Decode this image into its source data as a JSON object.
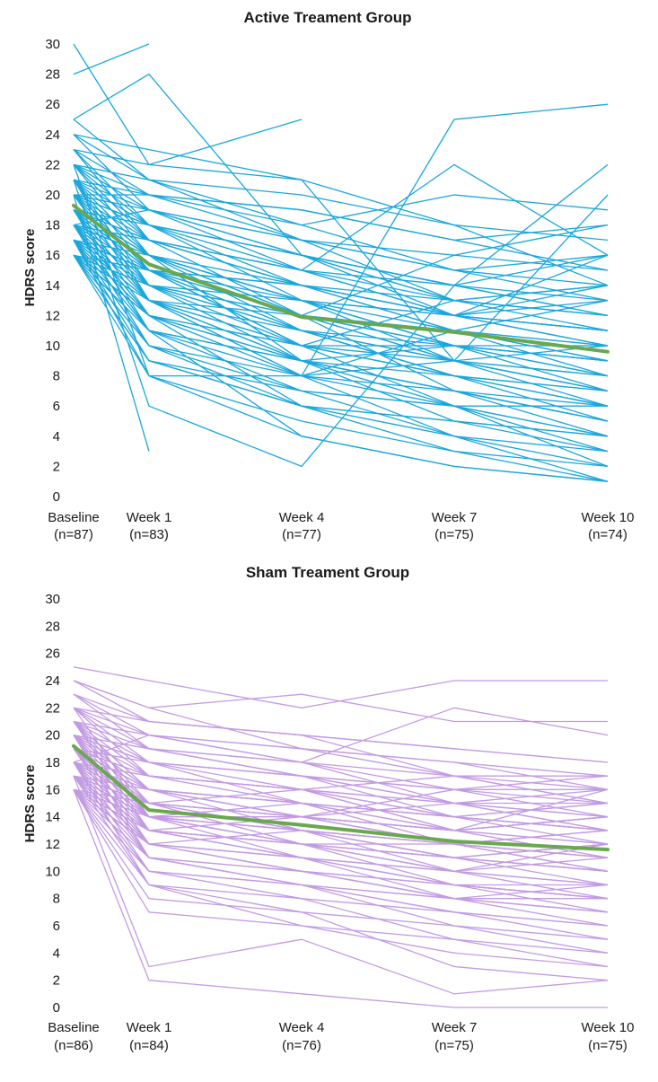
{
  "chart_data": [
    {
      "type": "line",
      "title": "Active Treament Group",
      "ylabel": "HDRS score",
      "ylim": [
        0,
        30
      ],
      "yticks": [
        0,
        2,
        4,
        6,
        8,
        10,
        12,
        14,
        16,
        18,
        20,
        22,
        24,
        26,
        28,
        30
      ],
      "categories": [
        "Baseline",
        "Week 1",
        "Week 4",
        "Week 7",
        "Week 10"
      ],
      "category_n": [
        "(n=87)",
        "(n=83)",
        "(n=77)",
        "(n=75)",
        "(n=74)"
      ],
      "individual_color": "#1aa7dc",
      "mean_color": "#6aa84f",
      "grid": false,
      "mean": [
        19.3,
        15.4,
        11.9,
        10.9,
        9.6
      ],
      "subjects": [
        [
          28,
          30
        ],
        [
          30,
          22,
          25
        ],
        [
          25,
          28,
          16,
          12,
          16
        ],
        [
          22,
          8,
          8,
          25,
          26
        ],
        [
          21,
          6,
          2,
          14,
          22
        ],
        [
          20,
          3
        ],
        [
          24,
          23,
          21,
          9,
          20
        ],
        [
          16,
          14,
          12,
          16,
          18
        ],
        [
          17,
          15,
          10,
          13,
          12
        ],
        [
          18,
          12,
          8,
          11,
          9
        ],
        [
          19,
          16,
          13,
          9,
          7
        ],
        [
          20,
          18,
          15,
          12,
          10
        ],
        [
          23,
          20,
          17,
          13,
          14
        ],
        [
          16,
          9,
          6,
          5,
          4
        ],
        [
          17,
          10,
          7,
          6,
          3
        ],
        [
          18,
          11,
          4,
          2,
          1
        ],
        [
          19,
          13,
          9,
          8,
          6
        ],
        [
          21,
          17,
          14,
          12,
          11
        ],
        [
          22,
          19,
          16,
          14,
          12
        ],
        [
          16,
          12,
          10,
          10,
          8
        ],
        [
          17,
          14,
          11,
          9,
          10
        ],
        [
          18,
          15,
          12,
          7,
          5
        ],
        [
          19,
          17,
          14,
          11,
          13
        ],
        [
          20,
          16,
          9,
          6,
          2
        ],
        [
          21,
          18,
          13,
          10,
          9
        ],
        [
          24,
          21,
          18,
          15,
          16
        ],
        [
          16,
          8,
          5,
          3,
          1
        ],
        [
          17,
          13,
          8,
          4,
          2
        ],
        [
          18,
          16,
          13,
          12,
          14
        ],
        [
          19,
          14,
          11,
          8,
          7
        ],
        [
          20,
          17,
          12,
          9,
          6
        ],
        [
          22,
          20,
          19,
          17,
          15
        ],
        [
          23,
          18,
          16,
          13,
          11
        ],
        [
          16,
          11,
          9,
          7,
          5
        ],
        [
          17,
          12,
          6,
          5,
          3
        ],
        [
          18,
          13,
          10,
          6,
          4
        ],
        [
          19,
          15,
          13,
          11,
          10
        ],
        [
          20,
          19,
          17,
          15,
          14
        ],
        [
          21,
          16,
          11,
          10,
          8
        ],
        [
          25,
          21,
          20,
          18,
          17
        ],
        [
          16,
          10,
          8,
          9,
          7
        ],
        [
          17,
          15,
          14,
          13,
          12
        ],
        [
          18,
          14,
          12,
          10,
          9
        ],
        [
          19,
          12,
          9,
          7,
          6
        ],
        [
          20,
          15,
          10,
          8,
          5
        ],
        [
          21,
          19,
          16,
          14,
          13
        ],
        [
          22,
          17,
          15,
          12,
          11
        ],
        [
          16,
          13,
          11,
          9,
          8
        ],
        [
          17,
          11,
          7,
          4,
          3
        ],
        [
          18,
          17,
          15,
          14,
          16
        ],
        [
          19,
          16,
          12,
          11,
          9
        ],
        [
          20,
          14,
          9,
          5,
          4
        ],
        [
          21,
          20,
          18,
          20,
          19
        ],
        [
          23,
          22,
          21,
          18,
          14
        ],
        [
          16,
          9,
          7,
          6,
          6
        ],
        [
          17,
          16,
          13,
          10,
          10
        ],
        [
          18,
          12,
          10,
          8,
          7
        ],
        [
          19,
          18,
          16,
          13,
          12
        ],
        [
          20,
          13,
          8,
          7,
          5
        ],
        [
          21,
          15,
          12,
          9,
          8
        ],
        [
          22,
          21,
          17,
          16,
          15
        ],
        [
          16,
          15,
          14,
          12,
          11
        ],
        [
          17,
          9,
          6,
          3,
          2
        ],
        [
          18,
          19,
          17,
          15,
          13
        ],
        [
          19,
          11,
          8,
          6,
          4
        ],
        [
          20,
          18,
          14,
          12,
          10
        ],
        [
          21,
          14,
          10,
          8,
          6
        ],
        [
          24,
          19,
          15,
          22,
          16
        ],
        [
          16,
          12,
          9,
          10,
          9
        ],
        [
          17,
          13,
          12,
          11,
          10
        ],
        [
          18,
          10,
          6,
          4,
          1
        ],
        [
          19,
          17,
          15,
          13,
          14
        ],
        [
          20,
          16,
          13,
          10,
          7
        ],
        [
          22,
          18,
          16,
          14,
          12
        ],
        [
          16,
          14,
          13,
          12,
          13
        ],
        [
          17,
          8,
          4,
          2,
          1
        ],
        [
          18,
          16,
          14,
          11,
          8
        ],
        [
          19,
          13,
          10,
          9,
          7
        ],
        [
          20,
          20,
          19,
          17,
          18
        ],
        [
          21,
          13,
          9,
          7,
          5
        ],
        [
          22,
          16,
          12,
          10,
          9
        ],
        [
          23,
          17,
          14,
          12,
          11
        ],
        [
          17,
          15,
          11,
          8,
          6
        ],
        [
          18,
          11,
          9,
          7,
          4
        ],
        [
          19,
          15,
          11,
          8
        ]
      ]
    },
    {
      "type": "line",
      "title": "Sham Treament Group",
      "ylabel": "HDRS score",
      "ylim": [
        0,
        30
      ],
      "yticks": [
        0,
        2,
        4,
        6,
        8,
        10,
        12,
        14,
        16,
        18,
        20,
        22,
        24,
        26,
        28,
        30
      ],
      "categories": [
        "Baseline",
        "Week 1",
        "Week 4",
        "Week 7",
        "Week 10"
      ],
      "category_n": [
        "(n=86)",
        "(n=84)",
        "(n=76)",
        "(n=75)",
        "(n=75)"
      ],
      "individual_color": "#c39be3",
      "mean_color": "#6aa84f",
      "grid": false,
      "mean": [
        19.2,
        14.5,
        13.4,
        12.2,
        11.6
      ],
      "subjects": [
        [
          25,
          24,
          22,
          24,
          24
        ],
        [
          24,
          22,
          23,
          21,
          21
        ],
        [
          16,
          2,
          1,
          0,
          0
        ],
        [
          17,
          3,
          5,
          1,
          2
        ],
        [
          18,
          20,
          18,
          22,
          20
        ],
        [
          22,
          21,
          20,
          19,
          18
        ],
        [
          23,
          19,
          17,
          14,
          12
        ],
        [
          16,
          10,
          9,
          7,
          6
        ],
        [
          17,
          12,
          10,
          8,
          9
        ],
        [
          18,
          15,
          14,
          13,
          14
        ],
        [
          19,
          17,
          15,
          14,
          15
        ],
        [
          20,
          18,
          16,
          15,
          13
        ],
        [
          21,
          13,
          12,
          11,
          10
        ],
        [
          16,
          8,
          7,
          6,
          5
        ],
        [
          17,
          11,
          9,
          8,
          7
        ],
        [
          18,
          14,
          13,
          12,
          11
        ],
        [
          19,
          16,
          15,
          13,
          16
        ],
        [
          20,
          15,
          12,
          10,
          8
        ],
        [
          21,
          19,
          18,
          16,
          17
        ],
        [
          16,
          9,
          8,
          5,
          3
        ],
        [
          17,
          13,
          11,
          9,
          8
        ],
        [
          18,
          12,
          11,
          10,
          12
        ],
        [
          19,
          14,
          14,
          15,
          14
        ],
        [
          20,
          17,
          16,
          17,
          15
        ],
        [
          22,
          20,
          19,
          18,
          16
        ],
        [
          16,
          11,
          10,
          9,
          9
        ],
        [
          17,
          14,
          12,
          11,
          10
        ],
        [
          18,
          16,
          15,
          14,
          13
        ],
        [
          19,
          13,
          12,
          12,
          11
        ],
        [
          20,
          16,
          14,
          13,
          14
        ],
        [
          21,
          18,
          17,
          15,
          14
        ],
        [
          24,
          21,
          20,
          17,
          15
        ],
        [
          16,
          12,
          13,
          11,
          12
        ],
        [
          17,
          15,
          14,
          12,
          13
        ],
        [
          18,
          10,
          9,
          8,
          7
        ],
        [
          19,
          15,
          13,
          10,
          9
        ],
        [
          20,
          14,
          11,
          9,
          8
        ],
        [
          21,
          17,
          16,
          14,
          15
        ],
        [
          22,
          19,
          17,
          16,
          16
        ],
        [
          16,
          13,
          12,
          10,
          11
        ],
        [
          17,
          9,
          6,
          4,
          3
        ],
        [
          18,
          13,
          14,
          13,
          12
        ],
        [
          19,
          18,
          17,
          16,
          14
        ],
        [
          20,
          12,
          10,
          8,
          6
        ],
        [
          21,
          16,
          15,
          12,
          11
        ],
        [
          23,
          20,
          18,
          15,
          13
        ],
        [
          16,
          14,
          13,
          12,
          10
        ],
        [
          17,
          10,
          8,
          7,
          6
        ],
        [
          18,
          17,
          16,
          15,
          16
        ],
        [
          19,
          11,
          10,
          9,
          8
        ],
        [
          20,
          19,
          18,
          17,
          17
        ],
        [
          21,
          15,
          13,
          11,
          12
        ],
        [
          22,
          18,
          15,
          14,
          13
        ],
        [
          16,
          15,
          14,
          13,
          14
        ],
        [
          17,
          12,
          11,
          10,
          9
        ],
        [
          18,
          11,
          9,
          6,
          4
        ],
        [
          19,
          16,
          14,
          12,
          13
        ],
        [
          20,
          13,
          12,
          11,
          10
        ],
        [
          21,
          14,
          12,
          10,
          9
        ],
        [
          22,
          17,
          16,
          13,
          12
        ],
        [
          16,
          7,
          6,
          5,
          4
        ],
        [
          17,
          16,
          15,
          14,
          13
        ],
        [
          18,
          14,
          12,
          9,
          8
        ],
        [
          19,
          12,
          11,
          9,
          7
        ],
        [
          20,
          18,
          17,
          15,
          15
        ],
        [
          21,
          16,
          14,
          13,
          11
        ],
        [
          24,
          22,
          19,
          17,
          16
        ],
        [
          16,
          13,
          11,
          8,
          7
        ],
        [
          17,
          14,
          13,
          12,
          11
        ],
        [
          18,
          15,
          16,
          14,
          15
        ],
        [
          19,
          17,
          16,
          13,
          14
        ],
        [
          20,
          11,
          9,
          7,
          5
        ],
        [
          21,
          20,
          19,
          18,
          17
        ],
        [
          22,
          14,
          13,
          12,
          10
        ],
        [
          16,
          12,
          10,
          8,
          8
        ],
        [
          17,
          13,
          12,
          11,
          12
        ],
        [
          18,
          9,
          7,
          3,
          2
        ],
        [
          19,
          15,
          14,
          16,
          15
        ],
        [
          20,
          16,
          15,
          14,
          13
        ],
        [
          23,
          21,
          20,
          19,
          18
        ],
        [
          16,
          14,
          12,
          11,
          9
        ],
        [
          17,
          15,
          14,
          12,
          10
        ],
        [
          18,
          16,
          13,
          11,
          10
        ],
        [
          19,
          14,
          15,
          13,
          14
        ]
      ]
    }
  ]
}
